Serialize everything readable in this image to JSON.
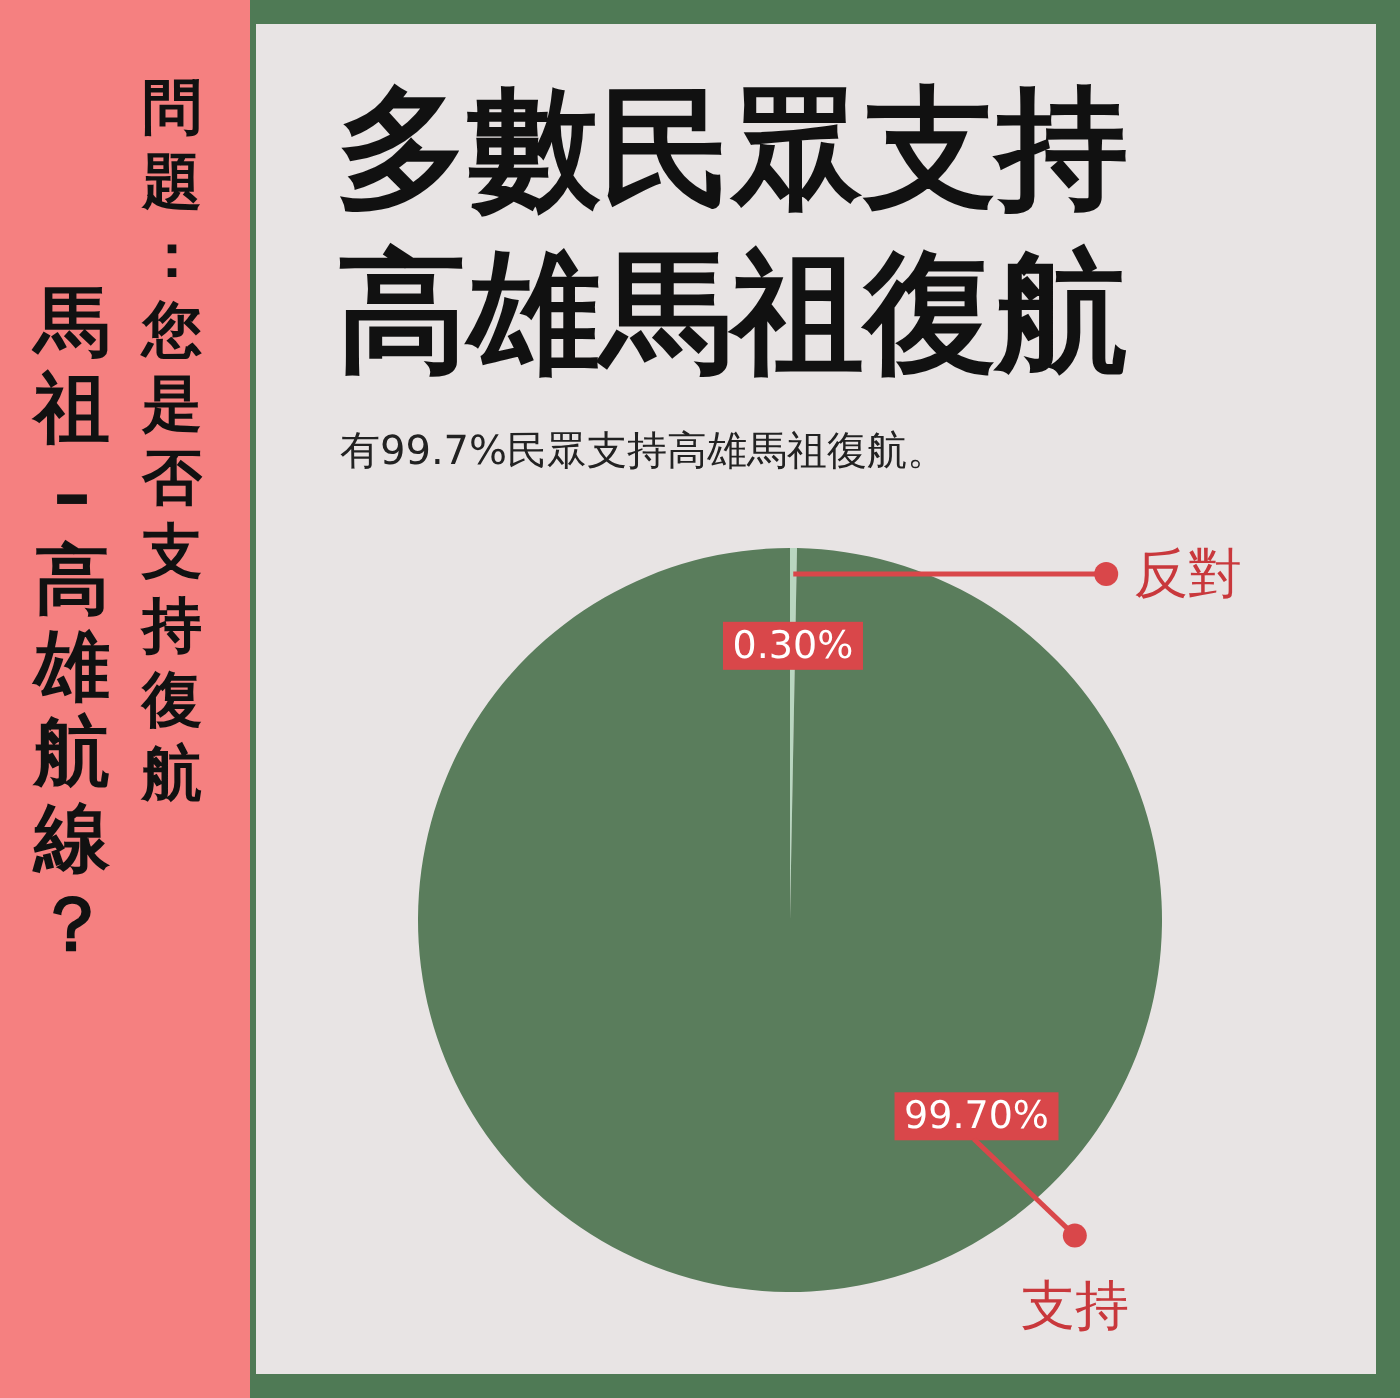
{
  "chart_data": {
    "type": "pie",
    "title": "多數民眾支持高雄馬祖復航",
    "subtitle": "有99.7%民眾支持高雄馬祖復航。",
    "annotations": [
      "問題：您是否支持復航",
      "馬祖–高雄航線？"
    ],
    "categories": [
      "反對",
      "支持"
    ],
    "values": [
      0.3,
      99.7
    ],
    "colors": [
      "#b9d6c0",
      "#5a7d5c"
    ],
    "value_labels": [
      "0.30%",
      "99.70%"
    ]
  }
}
